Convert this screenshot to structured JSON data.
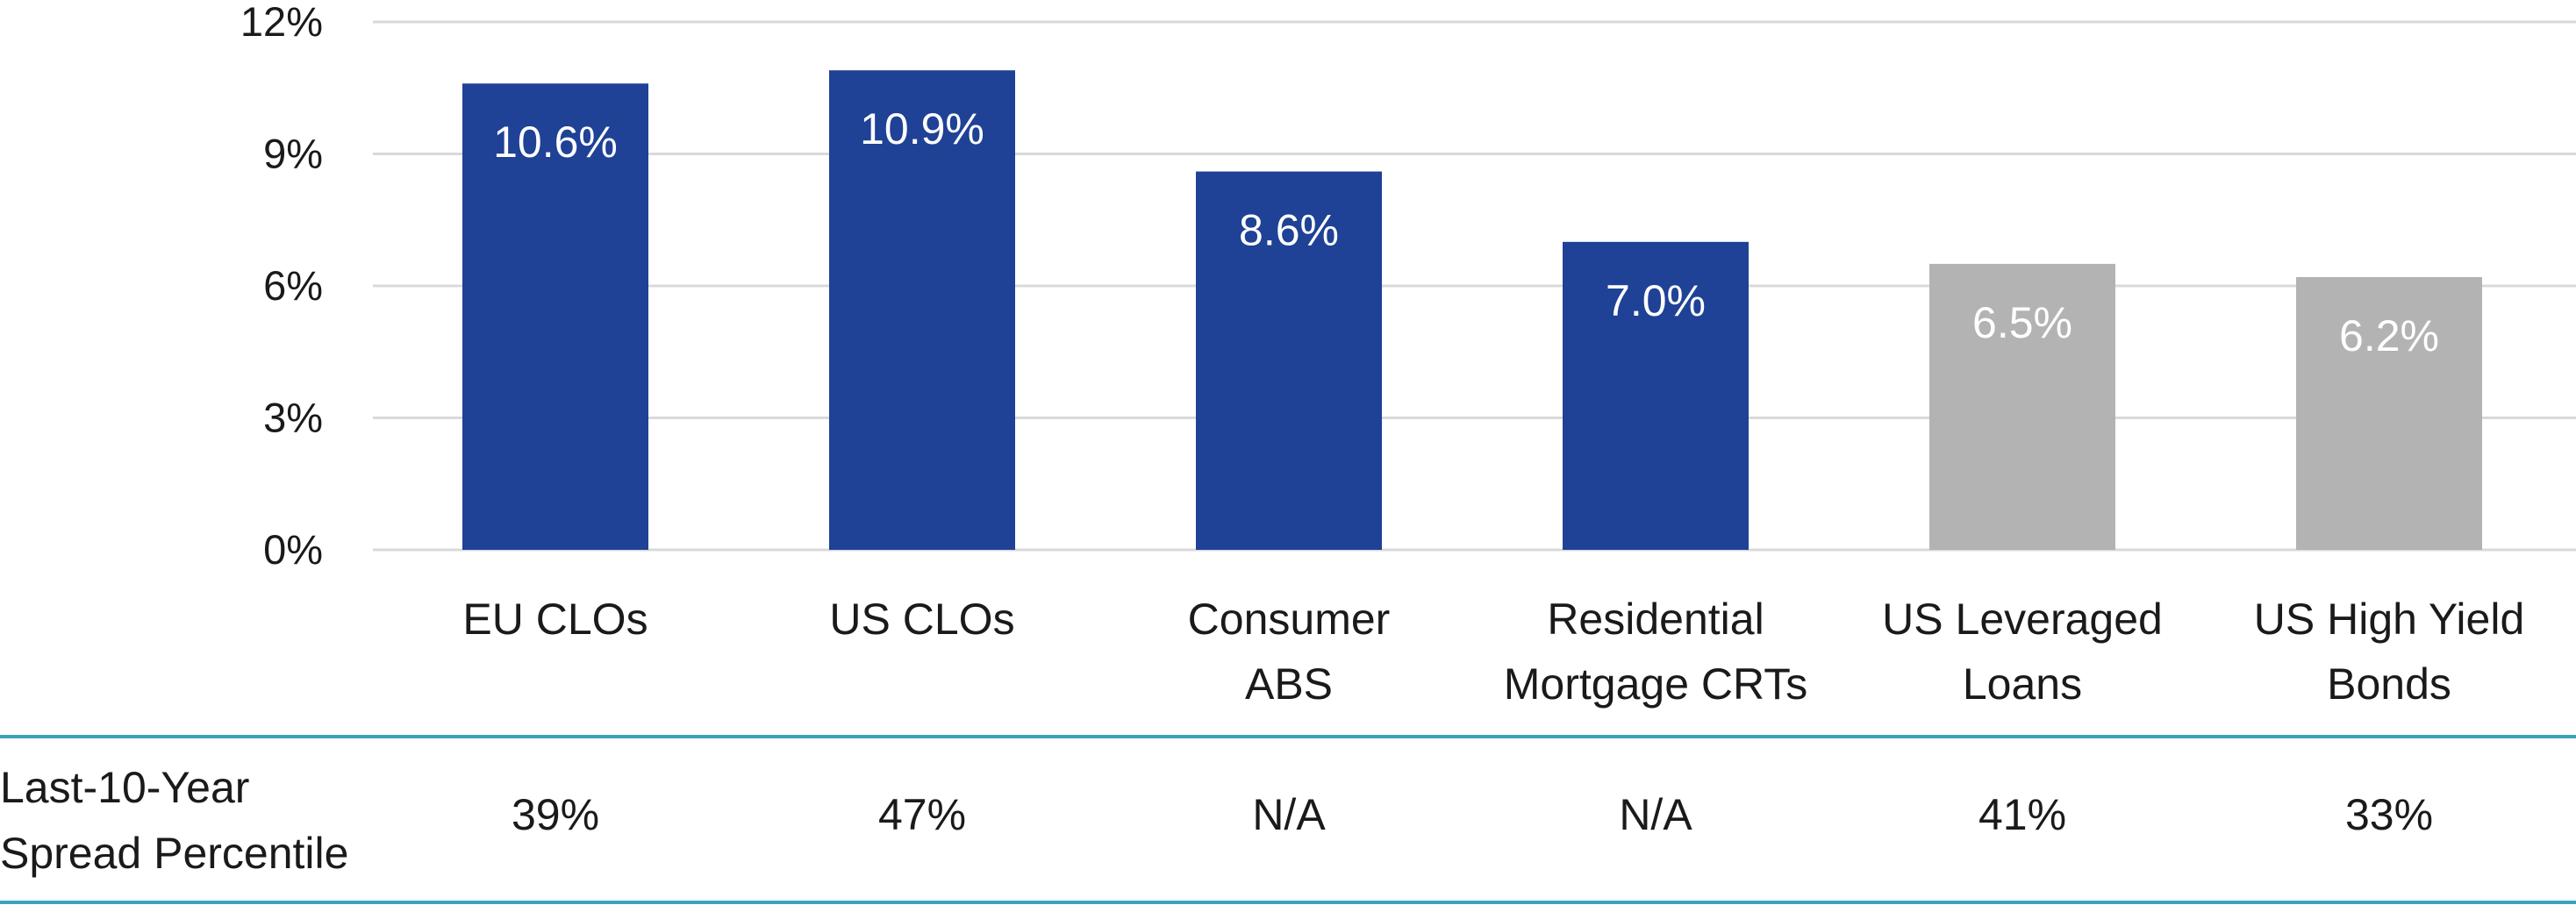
{
  "colors": {
    "highlight": "#1f4196",
    "muted": "#b3b3b4",
    "gridline": "#d9d9d9",
    "table_rule": "#3aa3b8"
  },
  "chart_data": {
    "type": "bar",
    "categories": [
      [
        "EU CLOs"
      ],
      [
        "US CLOs"
      ],
      [
        "Consumer",
        "ABS"
      ],
      [
        "Residential",
        "Mortgage CRTs"
      ],
      [
        "US Leveraged",
        "Loans"
      ],
      [
        "US High Yield",
        "Bonds"
      ]
    ],
    "values": [
      10.6,
      10.9,
      8.6,
      7.0,
      6.5,
      6.2
    ],
    "data_labels": [
      "10.6%",
      "10.9%",
      "8.6%",
      "7.0%",
      "6.5%",
      "6.2%"
    ],
    "bar_colors": [
      "highlight",
      "highlight",
      "highlight",
      "highlight",
      "muted",
      "muted"
    ],
    "ylim": [
      0,
      12
    ],
    "yticks": [
      0,
      3,
      6,
      9,
      12
    ],
    "ytick_labels": [
      "0%",
      "3%",
      "6%",
      "9%",
      "12%"
    ],
    "grid": true,
    "legend": "none",
    "title": "",
    "xlabel": "",
    "ylabel": ""
  },
  "table": {
    "row_label": [
      "Last-10-Year",
      "Spread Percentile"
    ],
    "values": [
      "39%",
      "47%",
      "N/A",
      "N/A",
      "41%",
      "33%"
    ]
  }
}
